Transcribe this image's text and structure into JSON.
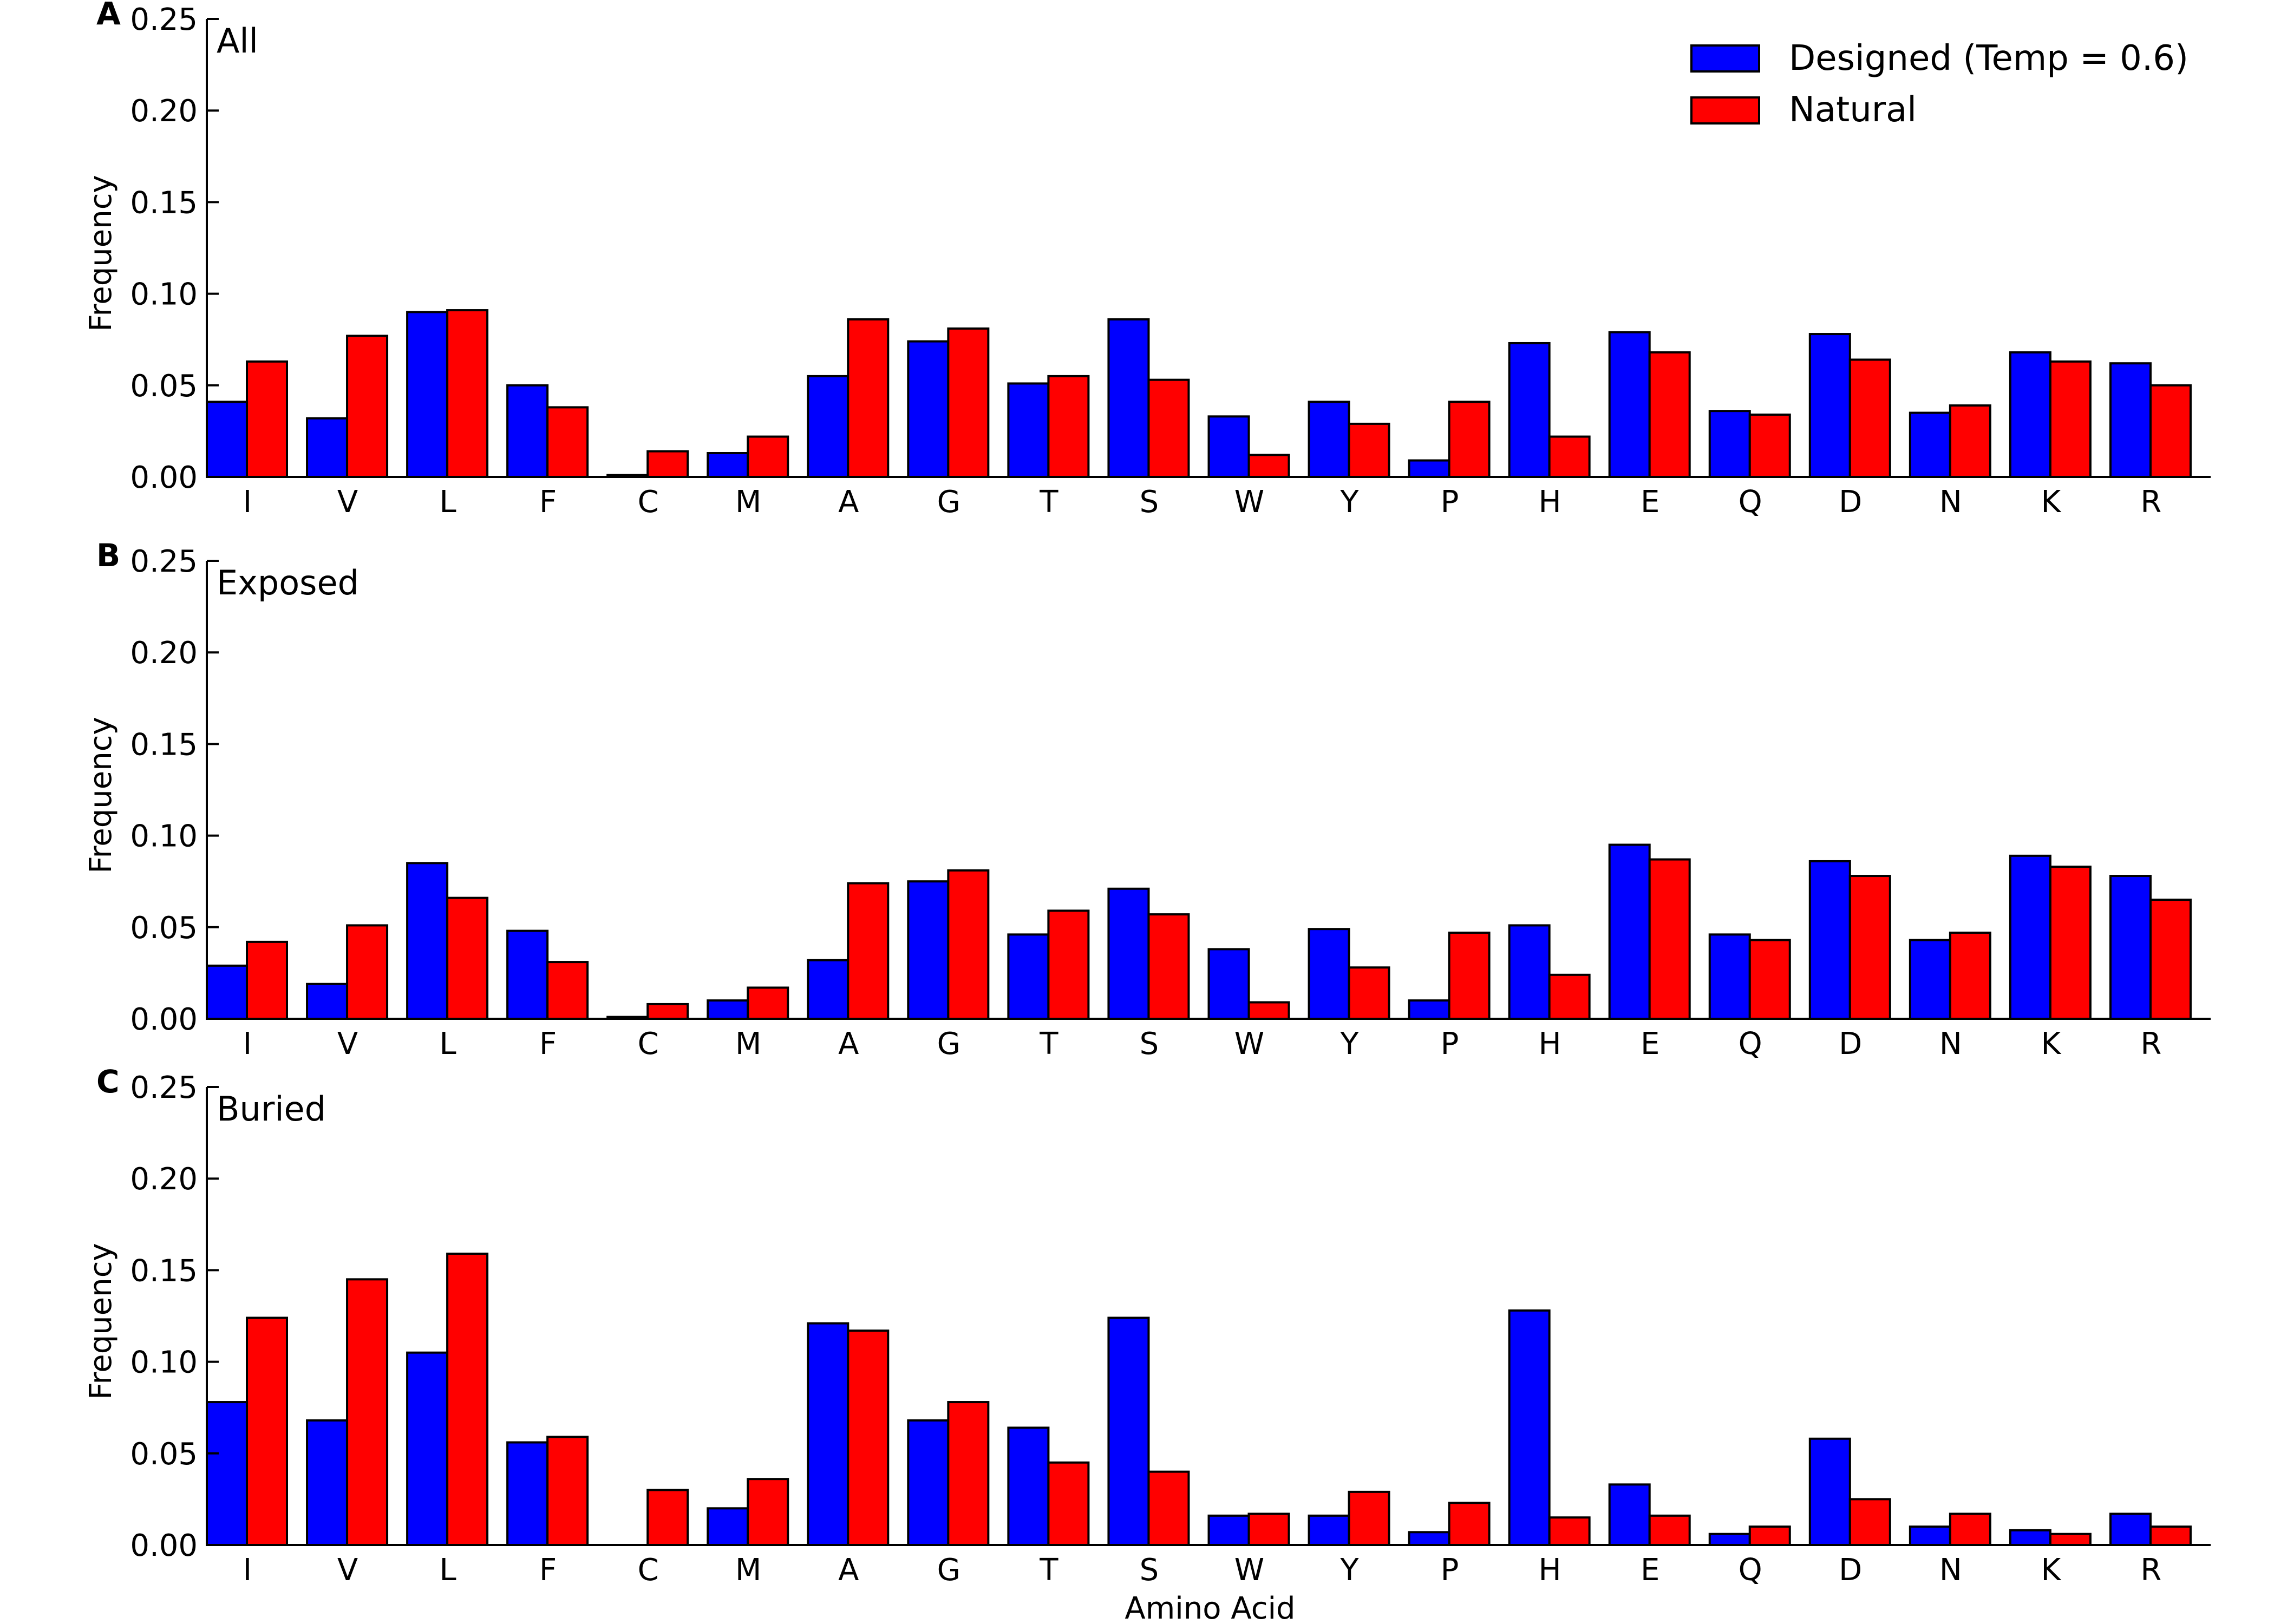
{
  "legend": {
    "position": "top-right",
    "entries": [
      {
        "label": "Designed (Temp = 0.6)",
        "color": "#0000ff"
      },
      {
        "label": "Natural",
        "color": "#ff0000"
      }
    ]
  },
  "xlabel": "Amino Acid",
  "chart_data": [
    {
      "type": "bar",
      "panel_letter": "A",
      "title": "All",
      "ylabel": "Frequency",
      "ylim": [
        0,
        0.25
      ],
      "yticks": [
        "0.00",
        "0.05",
        "0.10",
        "0.15",
        "0.20",
        "0.25"
      ],
      "categories": [
        "I",
        "V",
        "L",
        "F",
        "C",
        "M",
        "A",
        "G",
        "T",
        "S",
        "W",
        "Y",
        "P",
        "H",
        "E",
        "Q",
        "D",
        "N",
        "K",
        "R"
      ],
      "series": [
        {
          "name": "Designed (Temp = 0.6)",
          "color": "#0000ff",
          "values": [
            0.041,
            0.032,
            0.09,
            0.05,
            0.001,
            0.013,
            0.055,
            0.074,
            0.051,
            0.086,
            0.033,
            0.041,
            0.009,
            0.073,
            0.079,
            0.036,
            0.078,
            0.035,
            0.068,
            0.062
          ]
        },
        {
          "name": "Natural",
          "color": "#ff0000",
          "values": [
            0.063,
            0.077,
            0.091,
            0.038,
            0.014,
            0.022,
            0.086,
            0.081,
            0.055,
            0.053,
            0.012,
            0.029,
            0.041,
            0.022,
            0.068,
            0.034,
            0.064,
            0.039,
            0.063,
            0.05
          ]
        }
      ]
    },
    {
      "type": "bar",
      "panel_letter": "B",
      "title": "Exposed",
      "ylabel": "Frequency",
      "ylim": [
        0,
        0.25
      ],
      "yticks": [
        "0.00",
        "0.05",
        "0.10",
        "0.15",
        "0.20",
        "0.25"
      ],
      "categories": [
        "I",
        "V",
        "L",
        "F",
        "C",
        "M",
        "A",
        "G",
        "T",
        "S",
        "W",
        "Y",
        "P",
        "H",
        "E",
        "Q",
        "D",
        "N",
        "K",
        "R"
      ],
      "series": [
        {
          "name": "Designed (Temp = 0.6)",
          "color": "#0000ff",
          "values": [
            0.029,
            0.019,
            0.085,
            0.048,
            0.001,
            0.01,
            0.032,
            0.075,
            0.046,
            0.071,
            0.038,
            0.049,
            0.01,
            0.051,
            0.095,
            0.046,
            0.086,
            0.043,
            0.089,
            0.078
          ]
        },
        {
          "name": "Natural",
          "color": "#ff0000",
          "values": [
            0.042,
            0.051,
            0.066,
            0.031,
            0.008,
            0.017,
            0.074,
            0.081,
            0.059,
            0.057,
            0.009,
            0.028,
            0.047,
            0.024,
            0.087,
            0.043,
            0.078,
            0.047,
            0.083,
            0.065
          ]
        }
      ]
    },
    {
      "type": "bar",
      "panel_letter": "C",
      "title": "Buried",
      "ylabel": "Frequency",
      "ylim": [
        0,
        0.25
      ],
      "yticks": [
        "0.00",
        "0.05",
        "0.10",
        "0.15",
        "0.20",
        "0.25"
      ],
      "categories": [
        "I",
        "V",
        "L",
        "F",
        "C",
        "M",
        "A",
        "G",
        "T",
        "S",
        "W",
        "Y",
        "P",
        "H",
        "E",
        "Q",
        "D",
        "N",
        "K",
        "R"
      ],
      "series": [
        {
          "name": "Designed (Temp = 0.6)",
          "color": "#0000ff",
          "values": [
            0.078,
            0.068,
            0.105,
            0.056,
            0.0,
            0.02,
            0.121,
            0.068,
            0.064,
            0.124,
            0.016,
            0.016,
            0.007,
            0.128,
            0.033,
            0.006,
            0.058,
            0.01,
            0.008,
            0.017
          ]
        },
        {
          "name": "Natural",
          "color": "#ff0000",
          "values": [
            0.124,
            0.145,
            0.159,
            0.059,
            0.03,
            0.036,
            0.117,
            0.078,
            0.045,
            0.04,
            0.017,
            0.029,
            0.023,
            0.015,
            0.016,
            0.01,
            0.025,
            0.017,
            0.006,
            0.01
          ]
        }
      ]
    }
  ]
}
